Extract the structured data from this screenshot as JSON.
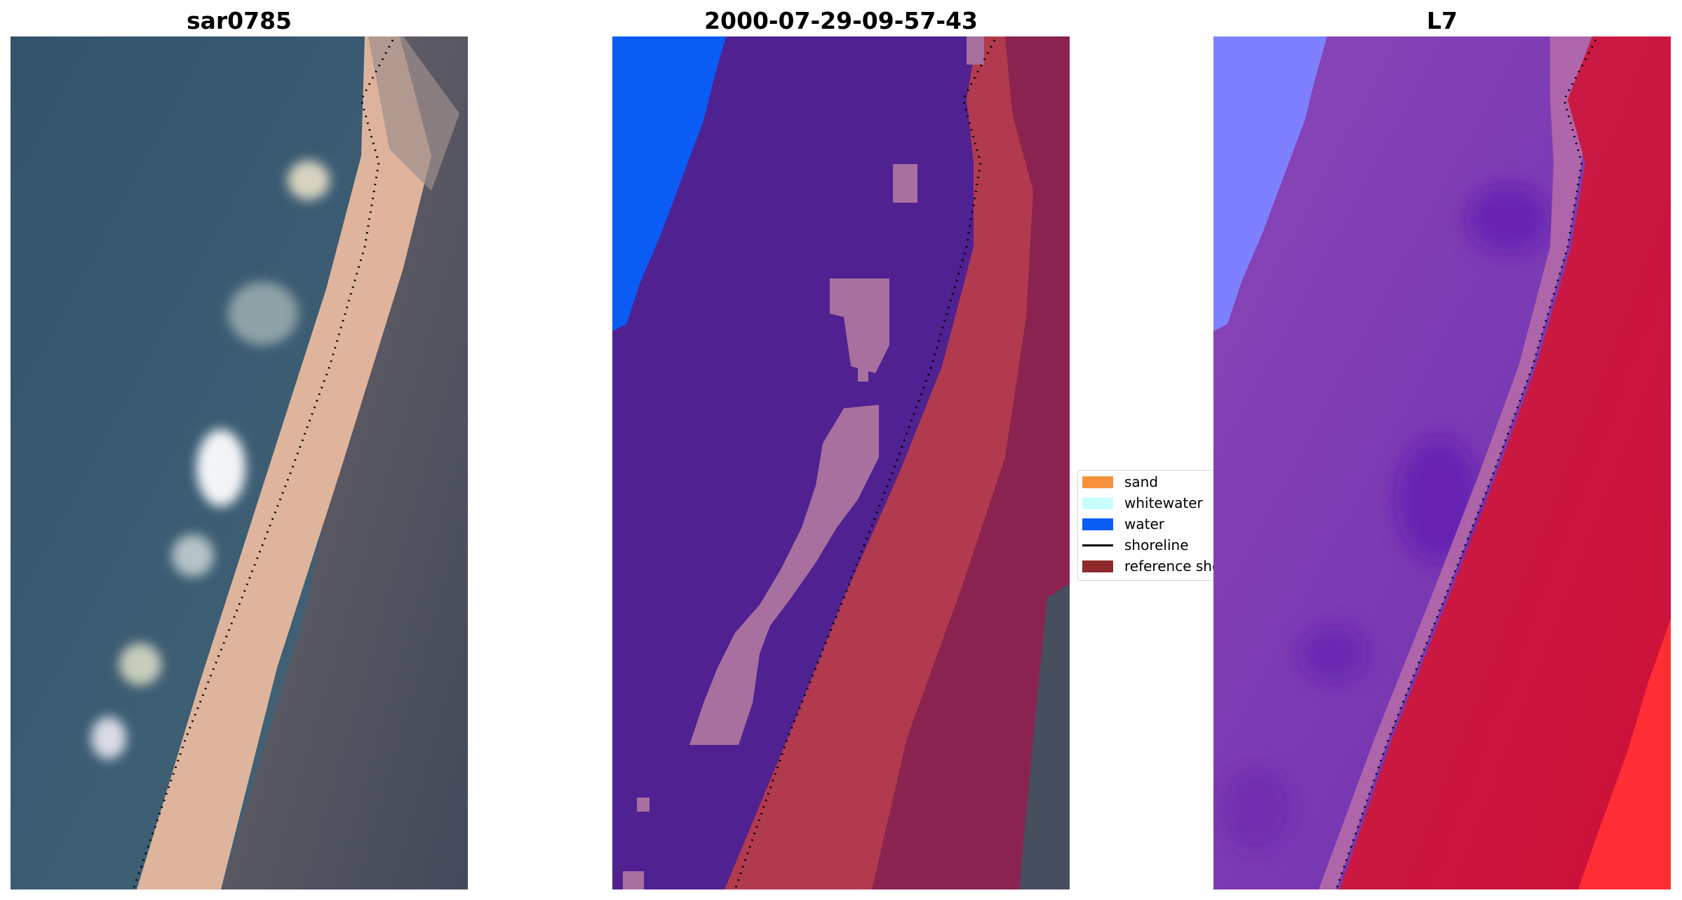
{
  "panels": [
    {
      "title": "sar0785"
    },
    {
      "title": "2000-07-29-09-57-43"
    },
    {
      "title": "L7"
    }
  ],
  "legend": {
    "items": [
      {
        "label": "sand",
        "color": "#f5913a",
        "kind": "patch"
      },
      {
        "label": "whitewater",
        "color": "#c9fdfc",
        "kind": "patch"
      },
      {
        "label": "water",
        "color": "#0a5cf5",
        "kind": "patch"
      },
      {
        "label": "shoreline",
        "color": "#000000",
        "kind": "line"
      },
      {
        "label": "reference shoreline",
        "color": "#8f2a2c",
        "kind": "patch"
      }
    ]
  },
  "colors": {
    "rgb_ocean": "#3b5a74",
    "rgb_beach": "#e9b89e",
    "rgb_land": "#4a4e5a",
    "class_water": "#0a5cf5",
    "class_other": "#4f2191",
    "class_foam": "#a8709e",
    "class_land": "#b23a4e",
    "class_dune": "#8a2350",
    "ndwi_water": "#7a55c8",
    "ndwi_blue": "#7e80ff",
    "ndwi_land": "#c41a3e",
    "ndwi_hot": "#ff2e35"
  }
}
